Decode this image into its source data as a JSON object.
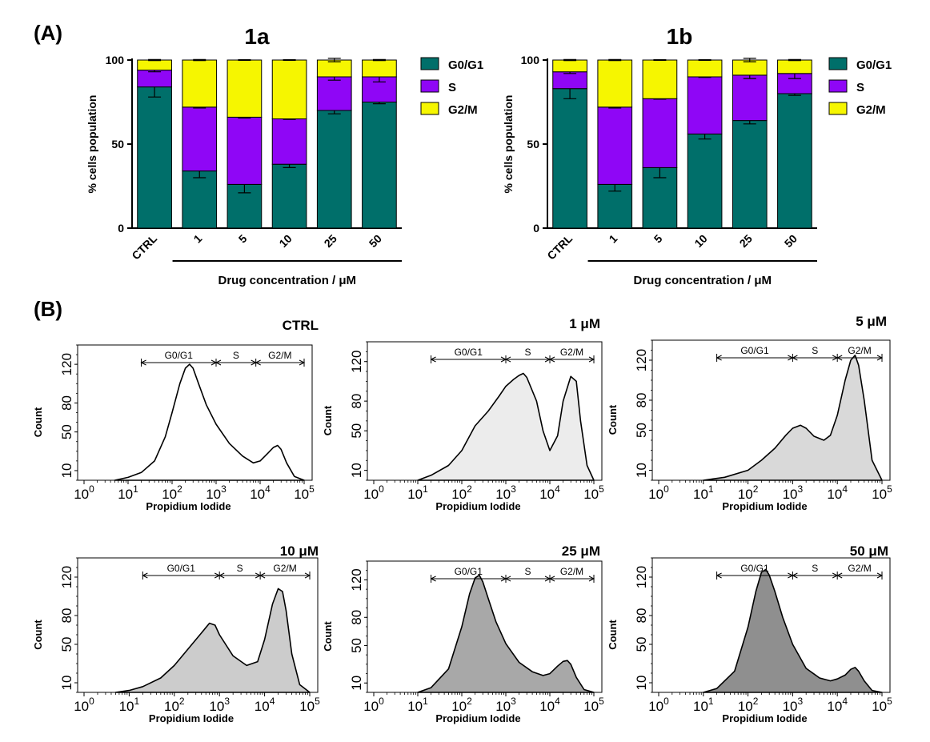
{
  "panel_labels": {
    "a": "(A)",
    "b": "(B)"
  },
  "colors": {
    "g0g1": "#006f6a",
    "s": "#8f06f6",
    "g2m": "#f6f600",
    "fill_light": "#ececec",
    "fill_mid": "#cfcfcf",
    "fill_dark": "#a9a9a9",
    "fill_darker": "#8f8f8f"
  },
  "chart_data": [
    {
      "type": "bar",
      "stacked": true,
      "title": "1a",
      "ylabel": "% cells population",
      "xlabel": "Drug concentration / μM",
      "categories": [
        "CTRL",
        "1",
        "5",
        "10",
        "25",
        "50"
      ],
      "ylim": [
        0,
        100
      ],
      "yticks": [
        "0",
        "50",
        "100"
      ],
      "legend": [
        "G0/G1",
        "S",
        "G2/M"
      ],
      "series": [
        {
          "name": "G0/G1",
          "values": [
            84,
            34,
            26,
            38,
            70,
            75
          ],
          "errors": [
            6,
            4,
            5,
            2,
            2,
            1
          ]
        },
        {
          "name": "S",
          "values": [
            10,
            38,
            40,
            27,
            20,
            15
          ],
          "errors": [
            1,
            0.5,
            0.5,
            0.3,
            2,
            3
          ]
        },
        {
          "name": "G2/M",
          "values": [
            6,
            28,
            34,
            35,
            10,
            10
          ],
          "errors": [
            0.3,
            0.3,
            0.2,
            0.2,
            1,
            0.3
          ]
        }
      ]
    },
    {
      "type": "bar",
      "stacked": true,
      "title": "1b",
      "ylabel": "% cells population",
      "xlabel": "Drug concentration / μM",
      "categories": [
        "CTRL",
        "1",
        "5",
        "10",
        "25",
        "50"
      ],
      "ylim": [
        0,
        100
      ],
      "yticks": [
        "0",
        "50",
        "100"
      ],
      "legend": [
        "G0/G1",
        "S",
        "G2/M"
      ],
      "series": [
        {
          "name": "G0/G1",
          "values": [
            83,
            26,
            36,
            56,
            64,
            80
          ],
          "errors": [
            6,
            4,
            6,
            3,
            2,
            1
          ]
        },
        {
          "name": "S",
          "values": [
            10,
            46,
            41,
            34,
            27,
            12
          ],
          "errors": [
            1,
            0.5,
            0.3,
            0.3,
            2,
            3
          ]
        },
        {
          "name": "G2/M",
          "values": [
            7,
            28,
            23,
            10,
            9,
            8
          ],
          "errors": [
            0.3,
            0.3,
            0.2,
            0.2,
            1,
            0.3
          ]
        }
      ]
    },
    {
      "type": "area",
      "subtype": "histogram",
      "title": "CTRL",
      "xlabel": "Propidium Iodide",
      "ylabel": "Count",
      "xscale": "log",
      "xlim": [
        1,
        100000
      ],
      "ylim": [
        0,
        140
      ],
      "yticks": [
        "10",
        "50",
        "80",
        "120"
      ],
      "gates": [
        "G0/G1",
        "S",
        "G2/M"
      ],
      "gate_bounds": [
        20,
        1000,
        8000,
        100000
      ],
      "fill": "#ffffff",
      "x": [
        5,
        10,
        20,
        40,
        70,
        100,
        150,
        200,
        250,
        300,
        400,
        600,
        1000,
        2000,
        4000,
        7000,
        10000,
        15000,
        20000,
        25000,
        30000,
        40000,
        60000,
        100000
      ],
      "y": [
        0,
        3,
        8,
        20,
        45,
        70,
        100,
        116,
        120,
        116,
        100,
        78,
        58,
        38,
        25,
        18,
        20,
        28,
        34,
        36,
        32,
        18,
        4,
        0
      ]
    },
    {
      "type": "area",
      "subtype": "histogram",
      "title": "1 μM",
      "xlabel": "Propidium Iodide",
      "ylabel": "Count",
      "xscale": "log",
      "xlim": [
        1,
        100000
      ],
      "ylim": [
        0,
        140
      ],
      "yticks": [
        "10",
        "50",
        "80",
        "120"
      ],
      "gates": [
        "G0/G1",
        "S",
        "G2/M"
      ],
      "gate_bounds": [
        20,
        1000,
        10000,
        100000
      ],
      "fill": "#ececec",
      "x": [
        10,
        20,
        50,
        100,
        200,
        400,
        700,
        1000,
        1500,
        2000,
        2500,
        3000,
        5000,
        7000,
        10000,
        15000,
        20000,
        30000,
        40000,
        50000,
        70000,
        100000
      ],
      "y": [
        0,
        5,
        15,
        30,
        55,
        70,
        85,
        95,
        102,
        106,
        108,
        104,
        80,
        50,
        30,
        45,
        80,
        105,
        100,
        60,
        15,
        0
      ]
    },
    {
      "type": "area",
      "subtype": "histogram",
      "title": "5 μM",
      "xlabel": "Propidium Iodide",
      "ylabel": "Count",
      "xscale": "log",
      "xlim": [
        1,
        100000
      ],
      "ylim": [
        0,
        140
      ],
      "yticks": [
        "10",
        "50",
        "80",
        "120"
      ],
      "gates": [
        "G0/G1",
        "S",
        "G2/M"
      ],
      "gate_bounds": [
        20,
        1000,
        10000,
        100000
      ],
      "fill": "#d9d9d9",
      "x": [
        10,
        30,
        100,
        200,
        400,
        700,
        1000,
        1500,
        2000,
        3000,
        5000,
        7000,
        10000,
        15000,
        20000,
        25000,
        30000,
        40000,
        60000,
        100000
      ],
      "y": [
        0,
        3,
        10,
        20,
        32,
        45,
        52,
        55,
        52,
        44,
        40,
        45,
        65,
        100,
        120,
        125,
        115,
        80,
        20,
        0
      ]
    },
    {
      "type": "area",
      "subtype": "histogram",
      "title": "10 μM",
      "xlabel": "Propidium Iodide",
      "ylabel": "Count",
      "xscale": "log",
      "xlim": [
        1,
        100000
      ],
      "ylim": [
        0,
        140
      ],
      "yticks": [
        "10",
        "50",
        "80",
        "120"
      ],
      "gates": [
        "G0/G1",
        "S",
        "G2/M"
      ],
      "gate_bounds": [
        20,
        1000,
        8000,
        100000
      ],
      "fill": "#cccccc",
      "x": [
        5,
        10,
        20,
        50,
        100,
        200,
        400,
        600,
        800,
        1000,
        2000,
        4000,
        7000,
        10000,
        15000,
        20000,
        25000,
        30000,
        40000,
        60000,
        100000
      ],
      "y": [
        0,
        2,
        6,
        15,
        28,
        45,
        62,
        72,
        70,
        60,
        38,
        28,
        32,
        55,
        92,
        108,
        105,
        85,
        40,
        8,
        0
      ]
    },
    {
      "type": "area",
      "subtype": "histogram",
      "title": "25 μM",
      "xlabel": "Propidium Iodide",
      "ylabel": "Count",
      "xscale": "log",
      "xlim": [
        1,
        100000
      ],
      "ylim": [
        0,
        140
      ],
      "yticks": [
        "10",
        "50",
        "80",
        "120"
      ],
      "gates": [
        "G0/G1",
        "S",
        "G2/M"
      ],
      "gate_bounds": [
        20,
        1000,
        10000,
        100000
      ],
      "fill": "#a8a8a8",
      "x": [
        10,
        20,
        50,
        100,
        150,
        200,
        250,
        300,
        400,
        600,
        1000,
        2000,
        4000,
        7000,
        10000,
        15000,
        20000,
        25000,
        30000,
        40000,
        60000,
        100000
      ],
      "y": [
        0,
        5,
        25,
        70,
        105,
        122,
        125,
        118,
        100,
        75,
        52,
        32,
        22,
        18,
        20,
        28,
        33,
        34,
        30,
        16,
        3,
        0
      ]
    },
    {
      "type": "area",
      "subtype": "histogram",
      "title": "50 μM",
      "xlabel": "Propidium Iodide",
      "ylabel": "Count",
      "xscale": "log",
      "xlim": [
        1,
        100000
      ],
      "ylim": [
        0,
        140
      ],
      "yticks": [
        "10",
        "50",
        "80",
        "120"
      ],
      "gates": [
        "G0/G1",
        "S",
        "G2/M"
      ],
      "gate_bounds": [
        20,
        1000,
        10000,
        100000
      ],
      "fill": "#8f8f8f",
      "x": [
        10,
        20,
        50,
        100,
        150,
        200,
        250,
        300,
        400,
        600,
        1000,
        2000,
        4000,
        7000,
        10000,
        15000,
        20000,
        25000,
        30000,
        40000,
        60000,
        100000
      ],
      "y": [
        0,
        4,
        22,
        68,
        105,
        125,
        128,
        122,
        105,
        78,
        50,
        25,
        15,
        12,
        14,
        18,
        24,
        26,
        22,
        12,
        2,
        0
      ]
    }
  ]
}
